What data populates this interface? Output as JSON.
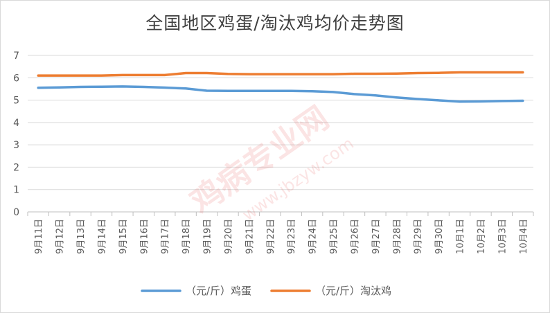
{
  "colors": {
    "egg": "#5B9BD5",
    "hen": "#ED7D31",
    "grid": "#d9d9d9",
    "axis": "#bfbfbf",
    "text": "#595959"
  },
  "chart_data": {
    "type": "line",
    "title": "全国地区鸡蛋/淘汰鸡均价走势图",
    "xlabel": "",
    "ylabel": "",
    "ylim": [
      0,
      7
    ],
    "yticks": [
      "0",
      "1",
      "2",
      "3",
      "4",
      "5",
      "6",
      "7"
    ],
    "grid": true,
    "legend_position": "bottom",
    "categories": [
      "9月11日",
      "9月12日",
      "9月13日",
      "9月14日",
      "9月15日",
      "9月16日",
      "9月17日",
      "9月18日",
      "9月19日",
      "9月20日",
      "9月21日",
      "9月22日",
      "9月23日",
      "9月24日",
      "9月25日",
      "9月26日",
      "9月27日",
      "9月28日",
      "9月29日",
      "9月30日",
      "10月1日",
      "10月2日",
      "10月3日",
      "10月4日"
    ],
    "series": [
      {
        "name": "（元/斤）鸡蛋",
        "color": "#5B9BD5",
        "values": [
          5.55,
          5.57,
          5.59,
          5.6,
          5.61,
          5.59,
          5.56,
          5.52,
          5.42,
          5.41,
          5.41,
          5.41,
          5.41,
          5.4,
          5.36,
          5.27,
          5.21,
          5.12,
          5.05,
          4.99,
          4.93,
          4.94,
          4.96,
          4.97
        ]
      },
      {
        "name": "（元/斤）淘汰鸡",
        "color": "#ED7D31",
        "values": [
          6.1,
          6.1,
          6.1,
          6.1,
          6.12,
          6.12,
          6.12,
          6.21,
          6.21,
          6.17,
          6.16,
          6.16,
          6.16,
          6.16,
          6.16,
          6.18,
          6.18,
          6.19,
          6.21,
          6.22,
          6.24,
          6.24,
          6.24,
          6.24
        ]
      }
    ]
  }
}
